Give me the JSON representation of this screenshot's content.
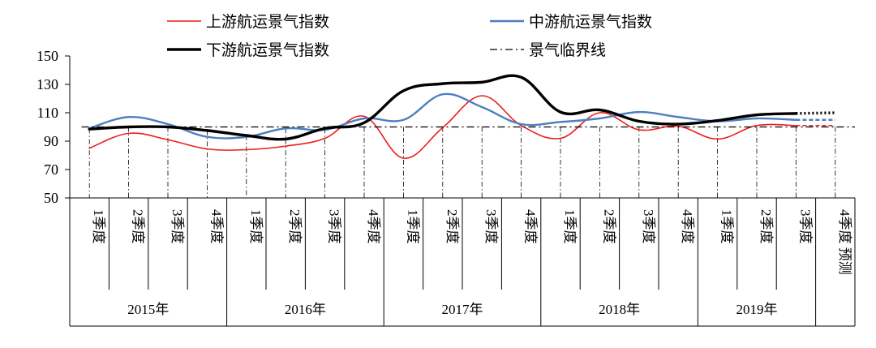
{
  "chart_data": {
    "type": "line",
    "ylim": [
      50,
      150
    ],
    "yticks": [
      "50",
      "70",
      "90",
      "110",
      "130",
      "150"
    ],
    "categories": [
      {
        "label": "1季度",
        "year": "2015年"
      },
      {
        "label": "2季度",
        "year": "2015年"
      },
      {
        "label": "3季度",
        "year": "2015年"
      },
      {
        "label": "4季度",
        "year": "2015年"
      },
      {
        "label": "1季度",
        "year": "2016年"
      },
      {
        "label": "2季度",
        "year": "2016年"
      },
      {
        "label": "3季度",
        "year": "2016年"
      },
      {
        "label": "4季度",
        "year": "2016年"
      },
      {
        "label": "1季度",
        "year": "2017年"
      },
      {
        "label": "2季度",
        "year": "2017年"
      },
      {
        "label": "3季度",
        "year": "2017年"
      },
      {
        "label": "4季度",
        "year": "2017年"
      },
      {
        "label": "1季度",
        "year": "2018年"
      },
      {
        "label": "2季度",
        "year": "2018年"
      },
      {
        "label": "3季度",
        "year": "2018年"
      },
      {
        "label": "4季度",
        "year": "2018年"
      },
      {
        "label": "1季度",
        "year": "2019年"
      },
      {
        "label": "2季度",
        "year": "2019年"
      },
      {
        "label": "3季度",
        "year": "2019年"
      },
      {
        "label": "4季度 预测",
        "year": ""
      }
    ],
    "year_groups": [
      {
        "label": "2015年",
        "count": 4
      },
      {
        "label": "2016年",
        "count": 4
      },
      {
        "label": "2017年",
        "count": 4
      },
      {
        "label": "2018年",
        "count": 4
      },
      {
        "label": "2019年",
        "count": 3
      },
      {
        "label": "",
        "count": 1
      }
    ],
    "series": [
      {
        "name": "上游航运景气指数",
        "color": "#ee1c1c",
        "style": "solid",
        "width": 1.6,
        "values": [
          85,
          95.5,
          91,
          84.5,
          84,
          86.5,
          92,
          107.5,
          78,
          99.5,
          122,
          101,
          92,
          110,
          98,
          100.5,
          91.5,
          101,
          101,
          101
        ]
      },
      {
        "name": "中游航运景气指数",
        "color": "#4f7fc0",
        "style": "solid",
        "width": 2.4,
        "values": [
          99,
          107,
          102,
          93,
          93,
          99,
          98,
          106,
          105,
          123,
          114,
          102,
          103.5,
          106,
          110.5,
          107,
          104,
          106,
          105,
          105
        ]
      },
      {
        "name": "下游航运景气指数",
        "color": "#000000",
        "style": "solid",
        "width": 3.4,
        "values": [
          98.5,
          100,
          100,
          97.5,
          94,
          91.5,
          99,
          103,
          125.5,
          130.5,
          131.5,
          135,
          110.5,
          112,
          104,
          102,
          104.5,
          108.5,
          109.5,
          110
        ]
      },
      {
        "name": "景气临界线",
        "color": "#000000",
        "style": "dashdot",
        "width": 1.2,
        "values": [
          100,
          100,
          100,
          100,
          100,
          100,
          100,
          100,
          100,
          100,
          100,
          100,
          100,
          100,
          100,
          100,
          100,
          100,
          100,
          100
        ]
      }
    ],
    "forecast_from_index": 18,
    "grid": false,
    "legend_position": "top"
  }
}
